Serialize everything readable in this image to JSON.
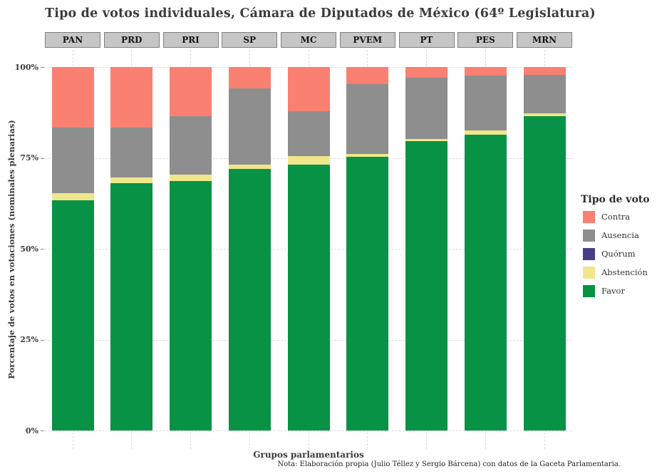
{
  "title": "Tipo de votos individuales, Cámara de Diputados de México (64º Legislatura)",
  "caption": "Nota: Elaboración propia (Julio Téllez y Sergio Bárcena) con datos de la Gaceta Parlamentaria.",
  "chart_data": {
    "type": "bar",
    "stacked": true,
    "units": "percent",
    "title": "Tipo de votos individuales, Cámara de Diputados de México (64º Legislatura)",
    "xlabel": "Grupos parlamentarios",
    "ylabel": "Porcentaje de votos en votaciones (nominales plenarias)",
    "ylim": [
      0,
      100
    ],
    "yticks": [
      "0%",
      "25%",
      "50%",
      "75%",
      "100%"
    ],
    "ytick_values": [
      0,
      25,
      50,
      75,
      100
    ],
    "grid": "dashed-major",
    "facet_strips": true,
    "categories": [
      "PAN",
      "PRD",
      "PRI",
      "SP",
      "MC",
      "PVEM",
      "PT",
      "PES",
      "MRN"
    ],
    "series": [
      {
        "name": "Favor",
        "color": "#089246",
        "values": [
          63.3,
          68.0,
          68.6,
          72.0,
          73.2,
          75.3,
          79.7,
          81.4,
          86.6
        ]
      },
      {
        "name": "Abstención",
        "color": "#F0E68C",
        "values": [
          2.1,
          1.6,
          1.8,
          1.2,
          2.4,
          0.8,
          0.5,
          1.2,
          0.8
        ]
      },
      {
        "name": "Quórum",
        "color": "#474085",
        "values": [
          0,
          0,
          0,
          0,
          0,
          0,
          0,
          0,
          0
        ]
      },
      {
        "name": "Ausencia",
        "color": "#8E8E8E",
        "values": [
          17.9,
          13.7,
          16.2,
          20.9,
          12.2,
          19.2,
          16.9,
          15.1,
          10.5
        ]
      },
      {
        "name": "Contra",
        "color": "#FA8072",
        "values": [
          16.7,
          16.7,
          13.4,
          5.9,
          12.2,
          4.7,
          2.9,
          2.3,
          2.1
        ]
      }
    ],
    "legend": {
      "title": "Tipo de voto",
      "position": "right",
      "order": [
        "Contra",
        "Ausencia",
        "Quórum",
        "Abstención",
        "Favor"
      ]
    },
    "strip_style": {
      "fill": "#C6C6C6",
      "border": "#7F7F7F"
    },
    "grid_color": "#DBDBDB"
  }
}
